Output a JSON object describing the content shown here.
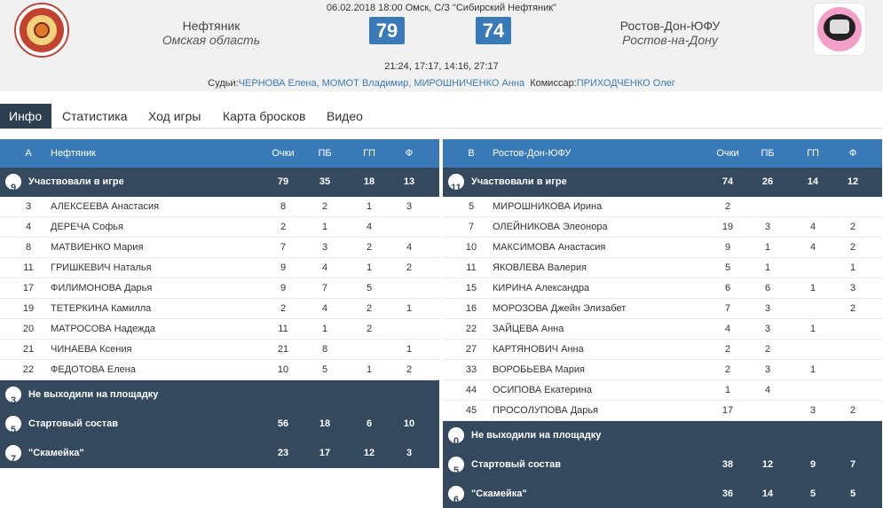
{
  "match": {
    "info": "06.02.2018 18:00 Омск, С/З \"Сибирский Нефтяник\"",
    "periods": "21:24, 17:17, 14:16, 27:17",
    "referees_label": "Судьи:",
    "referees": "ЧЕРНОВА Елена, МОМОТ Владимир, МИРОШНИЧЕНКО Анна",
    "commissioner_label": "Комиссар:",
    "commissioner": "ПРИХОДЧЕНКО Олег"
  },
  "home": {
    "name": "Нефтяник",
    "region": "Омская область",
    "score": "79",
    "logo_icon": "neftyanik-logo"
  },
  "away": {
    "name": "Ростов-Дон-ЮФУ",
    "region": "Ростов-на-Дону",
    "score": "74",
    "logo_icon": "rostov-don-logo"
  },
  "tabs": [
    {
      "label": "Инфо",
      "active": true
    },
    {
      "label": "Статистика",
      "active": false
    },
    {
      "label": "Ход игры",
      "active": false
    },
    {
      "label": "Карта бросков",
      "active": false
    },
    {
      "label": "Видео",
      "active": false
    }
  ],
  "left_table": {
    "letter": "A",
    "team": "Нефтяник",
    "cols": [
      "Очки",
      "ПБ",
      "ГП",
      "Ф"
    ],
    "played": {
      "count": "9",
      "label": "Участвовали в игре",
      "v": [
        "79",
        "35",
        "18",
        "13"
      ]
    },
    "players": [
      {
        "num": "3",
        "name": "АЛЕКСЕЕВА Анастасия",
        "v": [
          "8",
          "2",
          "1",
          "3"
        ]
      },
      {
        "num": "4",
        "name": "ДЕРЕЧА Софья",
        "v": [
          "2",
          "1",
          "4",
          ""
        ]
      },
      {
        "num": "8",
        "name": "МАТВИЕНКО Мария",
        "v": [
          "7",
          "3",
          "2",
          "4"
        ]
      },
      {
        "num": "11",
        "name": "ГРИШКЕВИЧ Наталья",
        "v": [
          "9",
          "4",
          "1",
          "2"
        ]
      },
      {
        "num": "17",
        "name": "ФИЛИМОНОВА Дарья",
        "v": [
          "9",
          "7",
          "5",
          ""
        ]
      },
      {
        "num": "19",
        "name": "ТЕТЕРКИНА Камилла",
        "v": [
          "2",
          "4",
          "2",
          "1"
        ]
      },
      {
        "num": "20",
        "name": "МАТРОСОВА Надежда",
        "v": [
          "11",
          "1",
          "2",
          ""
        ]
      },
      {
        "num": "21",
        "name": "ЧИНАЕВА Ксения",
        "v": [
          "21",
          "8",
          "",
          "1"
        ]
      },
      {
        "num": "22",
        "name": "ФЕДОТОВА Елена",
        "v": [
          "10",
          "5",
          "1",
          "2"
        ]
      }
    ],
    "dnp": {
      "count": "3",
      "label": "Не выходили на площадку"
    },
    "starters": {
      "count": "5",
      "label": "Стартовый состав",
      "v": [
        "56",
        "18",
        "6",
        "10"
      ]
    },
    "bench": {
      "count": "7",
      "label": "\"Скамейка\"",
      "v": [
        "23",
        "17",
        "12",
        "3"
      ]
    }
  },
  "right_table": {
    "letter": "B",
    "team": "Ростов-Дон-ЮФУ",
    "cols": [
      "Очки",
      "ПБ",
      "ГП",
      "Ф"
    ],
    "played": {
      "count": "11",
      "label": "Участвовали в игре",
      "v": [
        "74",
        "26",
        "14",
        "12"
      ]
    },
    "players": [
      {
        "num": "5",
        "name": "МИРОШНИКОВА Ирина",
        "v": [
          "2",
          "",
          "",
          ""
        ]
      },
      {
        "num": "7",
        "name": "ОЛЕЙНИКОВА Элеонора",
        "v": [
          "19",
          "3",
          "4",
          "2"
        ]
      },
      {
        "num": "10",
        "name": "МАКСИМОВА Анастасия",
        "v": [
          "9",
          "1",
          "4",
          "2"
        ]
      },
      {
        "num": "11",
        "name": "ЯКОВЛЕВА Валерия",
        "v": [
          "5",
          "1",
          "",
          "1"
        ]
      },
      {
        "num": "15",
        "name": "КИРИНА Александра",
        "v": [
          "6",
          "6",
          "1",
          "3"
        ]
      },
      {
        "num": "16",
        "name": "МОРОЗОВА Джейн Элизабет",
        "v": [
          "7",
          "3",
          "",
          "2"
        ]
      },
      {
        "num": "22",
        "name": "ЗАЙЦЕВА Анна",
        "v": [
          "4",
          "3",
          "1",
          ""
        ]
      },
      {
        "num": "27",
        "name": "КАРТЯНОВИЧ Анна",
        "v": [
          "2",
          "2",
          "",
          ""
        ]
      },
      {
        "num": "33",
        "name": "ВОРОБЬЕВА Мария",
        "v": [
          "2",
          "3",
          "1",
          ""
        ]
      },
      {
        "num": "44",
        "name": "ОСИПОВА Екатерина",
        "v": [
          "1",
          "4",
          "",
          ""
        ]
      },
      {
        "num": "45",
        "name": "ПРОСОЛУПОВА Дарья",
        "v": [
          "17",
          "",
          "3",
          "2"
        ]
      }
    ],
    "dnp": {
      "count": "0",
      "label": "Не выходили на площадку"
    },
    "starters": {
      "count": "5",
      "label": "Стартовый состав",
      "v": [
        "38",
        "12",
        "9",
        "7"
      ]
    },
    "bench": {
      "count": "6",
      "label": "\"Скамейка\"",
      "v": [
        "36",
        "14",
        "5",
        "5"
      ]
    }
  }
}
